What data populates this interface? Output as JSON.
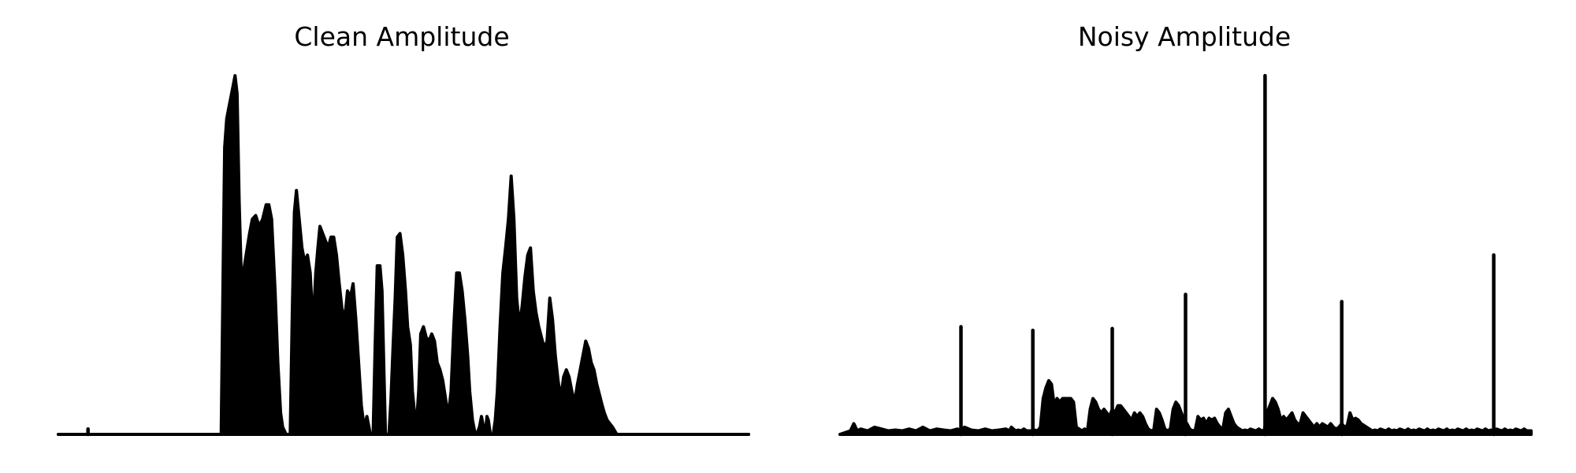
{
  "colors": {
    "line": "#000000",
    "background": "#ffffff"
  },
  "chart_data": [
    {
      "type": "area",
      "title": "Clean Amplitude",
      "axis": "off",
      "grid": false,
      "xlim": [
        0,
        100
      ],
      "ylim": [
        0,
        1
      ],
      "segments": [
        {
          "x": [
            0,
            23.6
          ],
          "y": [
            0,
            0
          ]
        },
        {
          "x": [
            23.6,
            23.9,
            24.1,
            24.4,
            24.8,
            25.2,
            25.6,
            25.9,
            26.2,
            26.5,
            26.8,
            27.2,
            27.7,
            28.1,
            28.6,
            29.1,
            29.6,
            30.1,
            30.5,
            30.9,
            31.4,
            31.8,
            32.2,
            32.5,
            33.0
          ],
          "y": [
            0,
            0.5,
            0.8,
            0.88,
            0.92,
            0.96,
            1.0,
            0.95,
            0.65,
            0.45,
            0.45,
            0.5,
            0.56,
            0.6,
            0.61,
            0.58,
            0.6,
            0.64,
            0.64,
            0.6,
            0.4,
            0.2,
            0.06,
            0.02,
            0
          ]
        },
        {
          "x": [
            33.6,
            33.9,
            34.2,
            34.5,
            34.9,
            35.3,
            35.7,
            36.1,
            36.5,
            36.9,
            37.3,
            37.6,
            37.9,
            38.3,
            38.7,
            39.1,
            39.5,
            39.9,
            40.3,
            40.7,
            41.1,
            41.5,
            41.9,
            42.3,
            42.7,
            43.1,
            43.5,
            43.9,
            44.3,
            44.7,
            45.2
          ],
          "y": [
            0,
            0.35,
            0.62,
            0.68,
            0.6,
            0.52,
            0.48,
            0.5,
            0.45,
            0.3,
            0.45,
            0.52,
            0.58,
            0.56,
            0.54,
            0.52,
            0.55,
            0.55,
            0.5,
            0.42,
            0.35,
            0.32,
            0.4,
            0.38,
            0.42,
            0.32,
            0.2,
            0.08,
            0.02,
            0.05,
            0
          ]
        },
        {
          "x": [
            45.6,
            45.9,
            46.2,
            46.6,
            46.9,
            47.2,
            47.4
          ],
          "y": [
            0,
            0.25,
            0.47,
            0.47,
            0.4,
            0.15,
            0
          ]
        },
        {
          "x": [
            47.9,
            48.2,
            48.5,
            48.8,
            49.1,
            49.5,
            49.9,
            50.3,
            50.6,
            51.0,
            51.3,
            51.6,
            51.9,
            52.2,
            52.5,
            52.9,
            53.3,
            53.7,
            54.1,
            54.5,
            54.9,
            55.3,
            55.7,
            56.1,
            56.5,
            56.9,
            57.3,
            57.7,
            58.1,
            58.5,
            58.9,
            59.3,
            59.6,
            60.0,
            60.4
          ],
          "y": [
            0,
            0.1,
            0.25,
            0.38,
            0.55,
            0.56,
            0.5,
            0.4,
            0.3,
            0.25,
            0.12,
            0.06,
            0.03,
            0.12,
            0.28,
            0.3,
            0.27,
            0.26,
            0.28,
            0.26,
            0.2,
            0.18,
            0.15,
            0.1,
            0.05,
            0.12,
            0.3,
            0.45,
            0.45,
            0.4,
            0.32,
            0.22,
            0.12,
            0.04,
            0
          ]
        },
        {
          "x": [
            60.6,
            61.0,
            61.3,
            61.6,
            61.9,
            62.1,
            62.3,
            62.6
          ],
          "y": [
            0,
            0.02,
            0.05,
            0.02,
            0.01,
            0.05,
            0.04,
            0
          ]
        },
        {
          "x": [
            63.0,
            63.3,
            63.6,
            64.0,
            64.4,
            64.8,
            65.2,
            65.6,
            66.0,
            66.4,
            66.8,
            67.2,
            67.6,
            68.0,
            68.4,
            68.8,
            69.2,
            69.6,
            70.0,
            70.4,
            70.8,
            71.2,
            71.6,
            72.0,
            72.4,
            72.8,
            73.2,
            73.6,
            74.0,
            74.4,
            74.8,
            75.2,
            75.6,
            76.0,
            76.4,
            76.8,
            77.2,
            77.6,
            78.0,
            78.4,
            78.8,
            79.1,
            79.5,
            79.9,
            80.3,
            80.6,
            80.9
          ],
          "y": [
            0,
            0.04,
            0.12,
            0.3,
            0.45,
            0.52,
            0.6,
            0.72,
            0.6,
            0.38,
            0.3,
            0.36,
            0.44,
            0.5,
            0.52,
            0.4,
            0.34,
            0.3,
            0.27,
            0.24,
            0.26,
            0.38,
            0.32,
            0.22,
            0.15,
            0.1,
            0.16,
            0.18,
            0.16,
            0.12,
            0.09,
            0.14,
            0.18,
            0.22,
            0.26,
            0.24,
            0.2,
            0.18,
            0.14,
            0.11,
            0.08,
            0.06,
            0.04,
            0.03,
            0.02,
            0.01,
            0
          ]
        },
        {
          "x": [
            80.9,
            100
          ],
          "y": [
            0,
            0
          ]
        }
      ],
      "spikes": [
        {
          "x": 4.3,
          "y": 0.015
        }
      ]
    },
    {
      "type": "area",
      "title": "Noisy Amplitude",
      "axis": "off",
      "grid": false,
      "xlim": [
        0,
        100
      ],
      "ylim": [
        0,
        1
      ],
      "segments": [
        {
          "x": [
            0,
            1.5,
            2.0,
            2.5,
            3.0,
            4.0,
            5.0,
            6.0,
            7.0,
            8.0,
            9.0,
            10.0,
            11.0,
            12.0,
            13.0,
            14.0,
            15.0,
            16.0,
            17.0,
            17.5,
            18.0,
            19.0,
            20.0,
            21.0,
            22.0,
            23.0,
            24.0,
            24.5
          ],
          "y": [
            0,
            0.01,
            0.03,
            0.01,
            0.015,
            0.01,
            0.02,
            0.015,
            0.01,
            0.012,
            0.01,
            0.015,
            0.01,
            0.02,
            0.01,
            0.015,
            0.012,
            0.01,
            0.015,
            0.01,
            0.02,
            0.012,
            0.01,
            0.015,
            0.01,
            0.012,
            0.015,
            0.01
          ]
        },
        {
          "x": [
            24.5,
            24.8,
            25.1,
            25.4,
            25.8,
            26.2,
            26.6,
            27.0,
            27.4,
            27.8,
            28.2,
            28.6,
            29.0,
            29.4,
            29.8,
            30.2,
            30.6,
            31.0,
            31.4,
            31.8,
            32.2,
            32.6,
            33.0,
            33.4,
            33.8,
            34.2,
            34.6,
            35.0,
            35.4,
            35.8,
            36.2,
            36.6,
            37.0,
            37.4,
            37.8,
            38.2,
            38.6,
            39.0,
            39.4,
            39.8,
            40.2,
            40.6,
            41.0,
            41.4,
            41.8,
            42.2,
            42.6,
            43.0,
            43.4,
            43.8,
            44.2,
            44.6,
            45.0,
            45.4,
            45.8,
            46.2,
            46.6,
            47.0,
            47.4,
            47.8,
            48.2,
            48.6,
            49.0,
            49.4,
            49.8,
            50.2,
            50.6,
            51.0,
            51.4,
            51.8,
            52.2,
            52.6,
            53.0,
            53.4,
            53.8,
            54.2,
            54.6,
            55.0,
            55.4,
            55.8,
            56.2,
            56.6,
            57.0,
            57.4,
            57.8,
            58.2,
            58.6,
            59.0,
            59.4,
            59.8,
            60.2,
            60.6,
            61.0,
            61.4,
            61.8,
            62.2,
            62.6,
            63.0,
            63.4,
            63.8,
            64.2,
            64.6,
            65.0,
            65.4,
            65.8,
            66.2,
            66.6,
            67.0,
            67.4,
            67.8,
            68.2,
            68.6,
            69.0,
            69.4,
            69.8,
            70.2,
            70.6,
            71.0,
            71.4,
            71.8,
            72.2,
            72.6,
            73.0,
            73.4,
            73.8,
            74.2,
            74.6,
            75.0,
            75.4,
            75.8,
            76.2,
            76.6,
            77.0,
            77.4,
            77.8,
            78.2,
            78.6,
            79.0,
            79.4,
            79.8,
            80.2,
            80.6,
            81.0,
            81.4,
            81.8,
            82.2,
            82.6,
            83.0,
            83.4,
            83.8,
            84.2,
            84.6,
            85.0,
            85.4,
            85.8,
            86.2,
            86.6,
            87.0,
            87.4,
            87.8,
            88.2,
            88.6,
            89.0,
            89.4,
            89.8,
            90.2,
            90.6,
            91.0,
            91.4,
            91.8,
            92.2,
            92.6,
            93.0,
            93.4,
            93.8,
            94.2,
            94.6,
            95.0,
            95.4,
            95.8,
            96.2,
            96.6,
            97.0,
            97.4,
            97.8,
            98.2,
            98.6,
            99.0,
            99.4,
            100.0
          ],
          "y": [
            0.01,
            0.02,
            0.015,
            0.01,
            0.012,
            0.01,
            0.015,
            0.01,
            0.01,
            0.01,
            0.012,
            0.01,
            0.02,
            0.1,
            0.13,
            0.15,
            0.14,
            0.08,
            0.1,
            0.09,
            0.1,
            0.1,
            0.1,
            0.1,
            0.09,
            0.02,
            0.015,
            0.01,
            0.015,
            0.01,
            0.07,
            0.1,
            0.09,
            0.07,
            0.06,
            0.07,
            0.06,
            0.05,
            0.07,
            0.06,
            0.08,
            0.08,
            0.07,
            0.06,
            0.05,
            0.04,
            0.06,
            0.05,
            0.06,
            0.05,
            0.03,
            0.015,
            0.01,
            0.012,
            0.07,
            0.06,
            0.04,
            0.015,
            0.01,
            0.015,
            0.07,
            0.09,
            0.08,
            0.06,
            0.04,
            0.03,
            0.015,
            0.01,
            0.012,
            0.05,
            0.04,
            0.045,
            0.03,
            0.045,
            0.04,
            0.045,
            0.03,
            0.02,
            0.015,
            0.06,
            0.07,
            0.05,
            0.03,
            0.02,
            0.015,
            0.01,
            0.012,
            0.01,
            0.015,
            0.012,
            0.01,
            0.015,
            0.01,
            0.012,
            0.06,
            0.08,
            0.1,
            0.09,
            0.07,
            0.04,
            0.05,
            0.04,
            0.05,
            0.06,
            0.04,
            0.03,
            0.03,
            0.06,
            0.05,
            0.04,
            0.03,
            0.02,
            0.03,
            0.02,
            0.03,
            0.025,
            0.02,
            0.03,
            0.02,
            0.015,
            0.02,
            0.03,
            0.02,
            0.025,
            0.06,
            0.04,
            0.045,
            0.04,
            0.03,
            0.025,
            0.02,
            0.015,
            0.01,
            0.012,
            0.01,
            0.015,
            0.012,
            0.01,
            0.015,
            0.01,
            0.012,
            0.01,
            0.015,
            0.012,
            0.01,
            0.015,
            0.01,
            0.012,
            0.01,
            0.015,
            0.012,
            0.01,
            0.015,
            0.01,
            0.012,
            0.01,
            0.015,
            0.012,
            0.01,
            0.015,
            0.01,
            0.012,
            0.01,
            0.015,
            0.012,
            0.01,
            0.015,
            0.01,
            0.012,
            0.01,
            0.015,
            0.012,
            0.01,
            0.015,
            0.01,
            0.012,
            0.01,
            0.015,
            0.012,
            0.01,
            0.015,
            0.01,
            0.012,
            0.01,
            0.015,
            0.012,
            0.01,
            0.015,
            0.01,
            0.01
          ]
        }
      ],
      "spikes": [
        {
          "x": 17.5,
          "y": 0.3
        },
        {
          "x": 27.9,
          "y": 0.29
        },
        {
          "x": 39.4,
          "y": 0.295
        },
        {
          "x": 50.0,
          "y": 0.39
        },
        {
          "x": 61.5,
          "y": 1.0
        },
        {
          "x": 72.6,
          "y": 0.37
        },
        {
          "x": 94.6,
          "y": 0.5
        }
      ]
    }
  ]
}
